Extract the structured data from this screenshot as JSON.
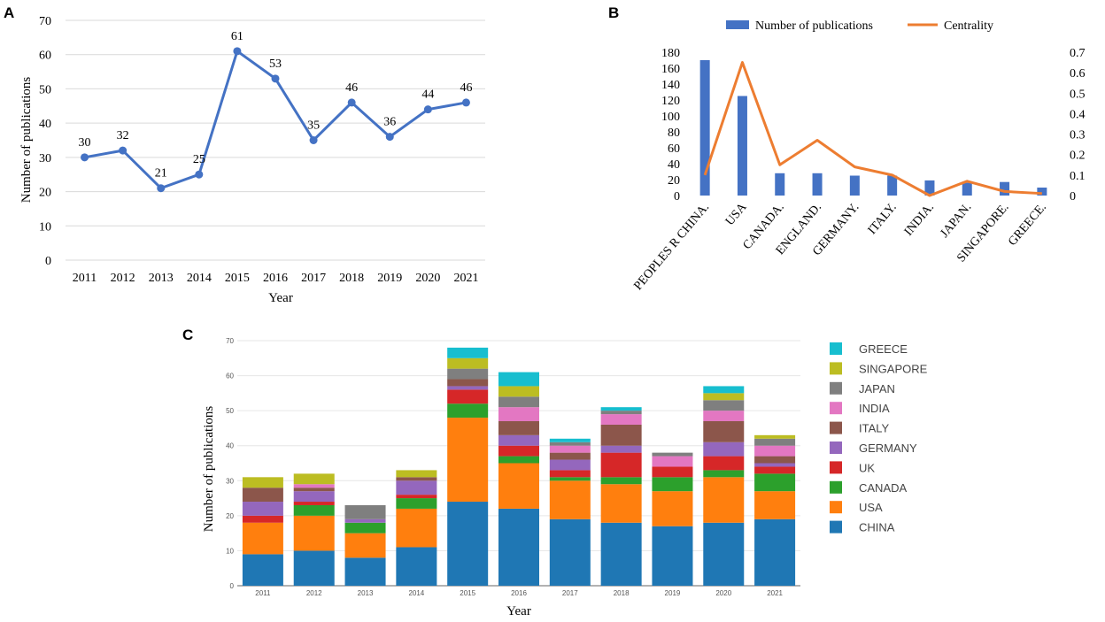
{
  "panels": {
    "a": "A",
    "b": "B",
    "c": "C"
  },
  "chart_data": [
    {
      "type": "line",
      "panel": "A",
      "title": "",
      "xlabel": "Year",
      "ylabel": "Number of publications",
      "x": [
        "2011",
        "2012",
        "2013",
        "2014",
        "2015",
        "2016",
        "2017",
        "2018",
        "2019",
        "2020",
        "2021"
      ],
      "values": [
        30,
        32,
        21,
        25,
        61,
        53,
        35,
        46,
        36,
        44,
        46
      ],
      "data_labels": [
        "30",
        "32",
        "21",
        "25",
        "61",
        "53",
        "35",
        "46",
        "36",
        "44",
        "46"
      ],
      "ylim": [
        0,
        70
      ],
      "yticks": [
        "0",
        "10",
        "20",
        "30",
        "40",
        "50",
        "60",
        "70"
      ],
      "grid": true,
      "color": "#4472c4"
    },
    {
      "type": "bar+line",
      "panel": "B",
      "categories": [
        "PEOPLES R CHINA.",
        "USA",
        "CANADA.",
        "ENGLAND.",
        "GERMANY.",
        "ITALY.",
        "INDIA.",
        "JAPAN.",
        "SINGAPORE.",
        "GREECE."
      ],
      "series": [
        {
          "name": "Number of publications",
          "type": "bar",
          "axis": "left",
          "color": "#4472c4",
          "values": [
            170,
            125,
            28,
            28,
            25,
            25,
            19,
            16,
            17,
            10
          ]
        },
        {
          "name": "Centrality",
          "type": "line",
          "axis": "right",
          "color": "#ed7d31",
          "values": [
            0.1,
            0.65,
            0.15,
            0.27,
            0.14,
            0.1,
            0.0,
            0.07,
            0.02,
            0.01
          ]
        }
      ],
      "ylim_left": [
        0,
        180
      ],
      "yticks_left": [
        "0",
        "20",
        "40",
        "60",
        "80",
        "100",
        "120",
        "140",
        "160",
        "180"
      ],
      "ylim_right": [
        0,
        0.7
      ],
      "yticks_right": [
        "0",
        "0.1",
        "0.2",
        "0.3",
        "0.4",
        "0.5",
        "0.6",
        "0.7"
      ],
      "legend": "top"
    },
    {
      "type": "stacked-bar",
      "panel": "C",
      "xlabel": "Year",
      "ylabel": "Number of publications",
      "categories": [
        "2011",
        "2012",
        "2013",
        "2014",
        "2015",
        "2016",
        "2017",
        "2018",
        "2019",
        "2020",
        "2021"
      ],
      "ylim": [
        0,
        70
      ],
      "yticks": [
        "0",
        "10",
        "20",
        "30",
        "40",
        "50",
        "60",
        "70"
      ],
      "legend": "right",
      "series": [
        {
          "name": "CHINA",
          "color": "#1f77b4",
          "values": [
            9,
            10,
            8,
            11,
            24,
            22,
            19,
            18,
            17,
            18,
            19
          ]
        },
        {
          "name": "USA",
          "color": "#ff7f0e",
          "values": [
            9,
            10,
            7,
            11,
            24,
            13,
            11,
            11,
            10,
            13,
            8
          ]
        },
        {
          "name": "CANADA",
          "color": "#2ca02c",
          "values": [
            0,
            3,
            3,
            3,
            4,
            2,
            1,
            2,
            4,
            2,
            5
          ]
        },
        {
          "name": "UK",
          "color": "#d62728",
          "values": [
            2,
            1,
            0,
            1,
            4,
            3,
            2,
            7,
            3,
            4,
            2
          ]
        },
        {
          "name": "GERMANY",
          "color": "#9467bd",
          "values": [
            4,
            3,
            1,
            4,
            1,
            3,
            3,
            2,
            0,
            4,
            1
          ]
        },
        {
          "name": "ITALY",
          "color": "#8c564b",
          "values": [
            4,
            1,
            0,
            1,
            2,
            4,
            2,
            6,
            0,
            6,
            2
          ]
        },
        {
          "name": "INDIA",
          "color": "#e377c2",
          "values": [
            0,
            1,
            0,
            0,
            0,
            4,
            2,
            3,
            3,
            3,
            3
          ]
        },
        {
          "name": "JAPAN",
          "color": "#7f7f7f",
          "values": [
            0,
            0,
            4,
            0,
            3,
            3,
            1,
            1,
            1,
            3,
            2
          ]
        },
        {
          "name": "SINGAPORE",
          "color": "#bcbd22",
          "values": [
            3,
            3,
            0,
            2,
            3,
            3,
            0,
            0,
            0,
            2,
            1
          ]
        },
        {
          "name": "GREECE",
          "color": "#17becf",
          "values": [
            0,
            0,
            0,
            0,
            3,
            4,
            1,
            1,
            0,
            2,
            0
          ]
        }
      ]
    }
  ]
}
